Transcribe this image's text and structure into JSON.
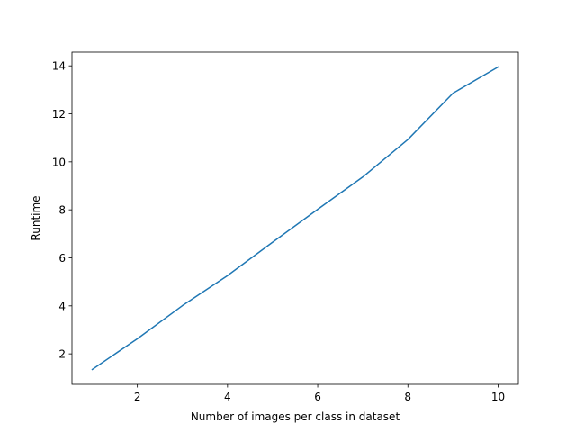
{
  "chart_data": {
    "type": "line",
    "title": "",
    "xlabel": "Number of images per class in dataset",
    "ylabel": "Runtime",
    "xlim": [
      0.55,
      10.45
    ],
    "ylim": [
      0.73,
      14.57
    ],
    "xticks": [
      2,
      4,
      6,
      8,
      10
    ],
    "yticks": [
      2,
      4,
      6,
      8,
      10,
      12,
      14
    ],
    "grid": false,
    "legend": "none",
    "series": [
      {
        "color": "#1f77b4",
        "x": [
          1,
          2,
          3,
          4,
          5,
          6,
          7,
          8,
          9,
          10
        ],
        "y": [
          1.35,
          2.63,
          4.01,
          5.26,
          6.65,
          8.02,
          9.37,
          10.93,
          12.86,
          13.95
        ]
      }
    ]
  }
}
